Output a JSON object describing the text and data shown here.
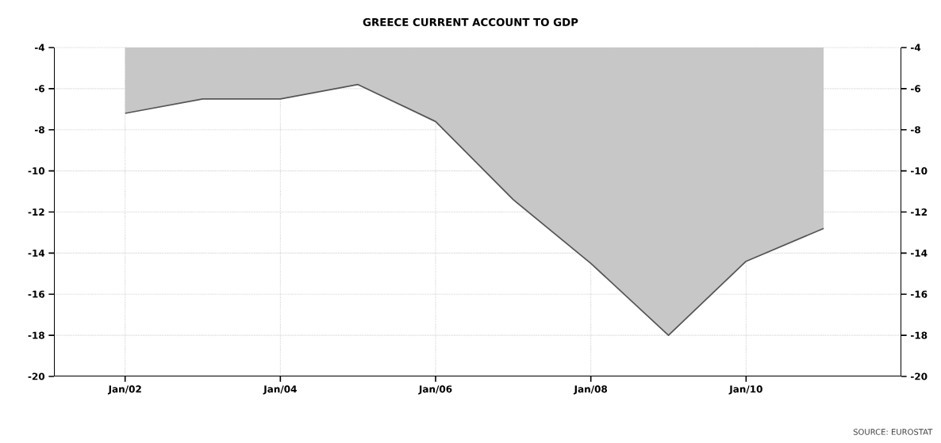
{
  "chart_data": {
    "type": "area",
    "title": "GREECE CURRENT ACCOUNT TO GDP",
    "x": [
      "2002-01",
      "2003-01",
      "2004-01",
      "2005-01",
      "2006-01",
      "2007-01",
      "2008-01",
      "2009-01",
      "2010-01",
      "2011-01"
    ],
    "series": [
      {
        "color": "#555555",
        "values": [
          -7.2,
          -6.5,
          -6.5,
          -5.8,
          -7.6,
          -11.4,
          -14.5,
          -18.0,
          -14.4,
          -12.8
        ]
      }
    ],
    "xlim": [
      "2001-02",
      "2012-01"
    ],
    "xticks": [
      {
        "value": "2002-01",
        "label": "Jan/02"
      },
      {
        "value": "2004-01",
        "label": "Jan/04"
      },
      {
        "value": "2006-01",
        "label": "Jan/06"
      },
      {
        "value": "2008-01",
        "label": "Jan/08"
      },
      {
        "value": "2010-01",
        "label": "Jan/10"
      }
    ],
    "ylim": [
      -20,
      -4
    ],
    "yticks": [
      -20,
      -18,
      -16,
      -14,
      -12,
      -10,
      -8,
      -6,
      -4
    ],
    "y2lim": [
      -20,
      -4
    ],
    "y2ticks": [
      -20,
      -18,
      -16,
      -14,
      -12,
      -10,
      -8,
      -6,
      -4
    ],
    "grid": true,
    "line_style": "solid",
    "annotations": [
      "SOURCE: EUROSTAT"
    ]
  }
}
